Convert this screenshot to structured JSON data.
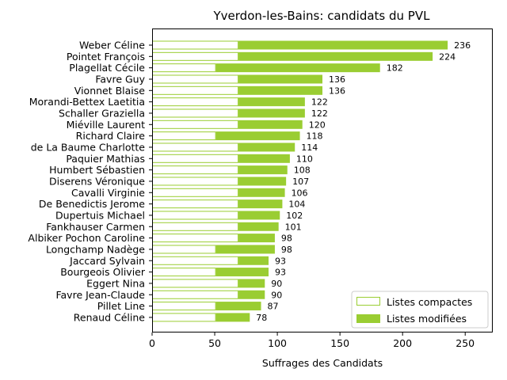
{
  "colors": {
    "bar": "#9acd32",
    "compact_fill": "#ffffff",
    "compact_edge": "#9acd32",
    "axis": "#000000",
    "legend_border": "#cccccc"
  },
  "chart_data": {
    "type": "bar",
    "orientation": "horizontal",
    "stacked": true,
    "title": "Yverdon-les-Bains: candidats du PVL",
    "xlabel": "Suffrages des Candidats",
    "ylabel": "",
    "xlim": [
      0,
      272
    ],
    "xticks": [
      0,
      50,
      100,
      150,
      200,
      250
    ],
    "grid": false,
    "legend_position": "bottom-right",
    "categories": [
      "Weber Céline",
      "Pointet François",
      "Plagellat Cécile",
      "Favre Guy",
      "Vionnet Blaise",
      "Morandi-Bettex Laetitia",
      "Schaller Graziella",
      "Miéville Laurent",
      "Richard Claire",
      "de La Baume Charlotte",
      "Paquier Mathias",
      "Humbert Sébastien",
      "Diserens Véronique",
      "Cavalli Virginie",
      "De Benedictis Jerome",
      "Dupertuis Michael",
      "Fankhauser Carmen",
      "Albiker Pochon Caroline",
      "Longchamp Nadège",
      "Jaccard Sylvain",
      "Bourgeois Olivier",
      "Eggert Nina",
      "Favre Jean-Claude",
      "Pillet Line",
      "Renaud Céline"
    ],
    "totals": [
      236,
      224,
      182,
      136,
      136,
      122,
      122,
      120,
      118,
      114,
      110,
      108,
      107,
      106,
      104,
      102,
      101,
      98,
      98,
      93,
      93,
      90,
      90,
      87,
      78
    ],
    "series": [
      {
        "name": "Listes compactes",
        "values": [
          69,
          69,
          51,
          69,
          69,
          69,
          69,
          69,
          51,
          69,
          69,
          69,
          69,
          69,
          69,
          69,
          69,
          69,
          51,
          69,
          51,
          69,
          69,
          51,
          51
        ]
      },
      {
        "name": "Listes modifiées",
        "values": [
          167,
          155,
          131,
          67,
          67,
          53,
          53,
          51,
          67,
          45,
          41,
          39,
          38,
          37,
          35,
          33,
          32,
          29,
          47,
          24,
          42,
          21,
          21,
          36,
          27
        ]
      }
    ]
  }
}
